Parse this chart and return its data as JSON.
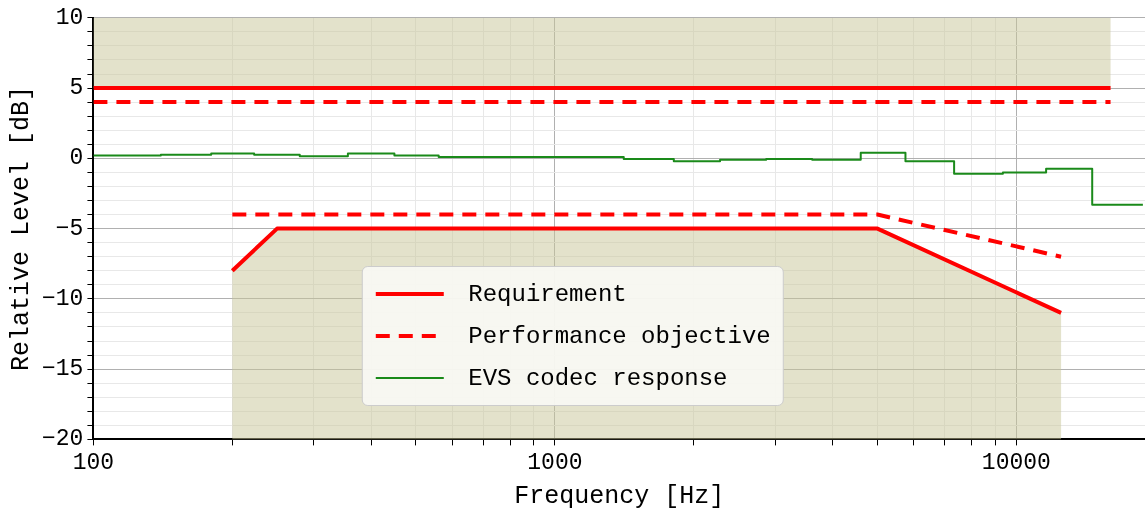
{
  "chart_data": {
    "type": "line",
    "xlabel": "Frequency [Hz]",
    "ylabel": "Relative Level [dB]",
    "log": "x",
    "xlim": [
      100,
      19000
    ],
    "xticks": [
      100,
      {
        "value": 200,
        "label": null
      },
      {
        "value": 300,
        "label": null
      },
      {
        "value": 400,
        "label": null
      },
      {
        "value": 500,
        "label": null
      },
      {
        "value": 600,
        "label": null
      },
      {
        "value": 700,
        "label": null
      },
      {
        "value": 800,
        "label": null
      },
      {
        "value": 900,
        "label": null
      },
      1000,
      {
        "value": 2000,
        "label": null
      },
      {
        "value": 3000,
        "label": null
      },
      {
        "value": 4000,
        "label": null
      },
      {
        "value": 5000,
        "label": null
      },
      {
        "value": 6000,
        "label": null
      },
      {
        "value": 7000,
        "label": null
      },
      {
        "value": 8000,
        "label": null
      },
      {
        "value": 9000,
        "label": null
      },
      10000
    ],
    "ylim": [
      -20,
      10
    ],
    "yticks": [
      -20,
      {
        "value": -19,
        "label": null
      },
      {
        "value": -18,
        "label": null
      },
      {
        "value": -17,
        "label": null
      },
      {
        "value": -16,
        "label": null
      },
      -15,
      {
        "value": -14,
        "label": null
      },
      {
        "value": -13,
        "label": null
      },
      {
        "value": -12,
        "label": null
      },
      {
        "value": -11,
        "label": null
      },
      -10,
      {
        "value": -9,
        "label": null
      },
      {
        "value": -8,
        "label": null
      },
      {
        "value": -7,
        "label": null
      },
      {
        "value": -6,
        "label": null
      },
      -5,
      {
        "value": -4,
        "label": null
      },
      {
        "value": -3,
        "label": null
      },
      {
        "value": -2,
        "label": null
      },
      {
        "value": -1,
        "label": null
      },
      0,
      {
        "value": 1,
        "label": null
      },
      {
        "value": 2,
        "label": null
      },
      {
        "value": 3,
        "label": null
      },
      {
        "value": 4,
        "label": null
      },
      5,
      {
        "value": 6,
        "label": null
      },
      {
        "value": 7,
        "label": null
      },
      {
        "value": 8,
        "label": null
      },
      {
        "value": 9,
        "label": null
      },
      10
    ],
    "grid": true,
    "legend": "bottom",
    "series": [
      {
        "name": "Requirement",
        "color": "#ff0000",
        "line_style": "solid",
        "x": [
          100,
          16000
        ],
        "values": [
          5,
          5
        ],
        "lower": [
          5,
          5
        ],
        "upper": [
          10,
          10
        ]
      },
      {
        "color": "#ff0000",
        "line_style": "solid",
        "x": [
          200,
          250,
          5000,
          12500
        ],
        "values": [
          -8,
          -5,
          -5,
          -11
        ],
        "lower": [
          -20,
          -20,
          -20,
          -20
        ],
        "upper": [
          -8,
          -5,
          -5,
          -11
        ]
      },
      {
        "name": "Performance objective",
        "color": "#ff0000",
        "line_style": "dashed",
        "x": [
          100,
          16000
        ],
        "values": [
          4,
          4
        ]
      },
      {
        "color": "#ff0000",
        "line_style": "dashed",
        "x": [
          200,
          5000,
          12500
        ],
        "values": [
          -4,
          -4,
          -7
        ]
      },
      {
        "name": "EVS codec response",
        "type": "step",
        "color": "#1a8a1a",
        "line_style": "solid",
        "x": [
          100,
          140,
          180,
          223,
          280,
          356,
          449,
          560,
          711,
          1410,
          1810,
          2280,
          2870,
          3610,
          4600,
          5750,
          7330,
          9350,
          11600,
          14600,
          18800
        ],
        "values": [
          0.2,
          0.25,
          0.35,
          0.25,
          0.15,
          0.35,
          0.2,
          0.1,
          0.1,
          -0.05,
          -0.2,
          -0.1,
          -0.05,
          -0.1,
          0.4,
          -0.2,
          -1.1,
          -1.0,
          -0.75,
          -3.3,
          -3.3
        ]
      }
    ]
  }
}
